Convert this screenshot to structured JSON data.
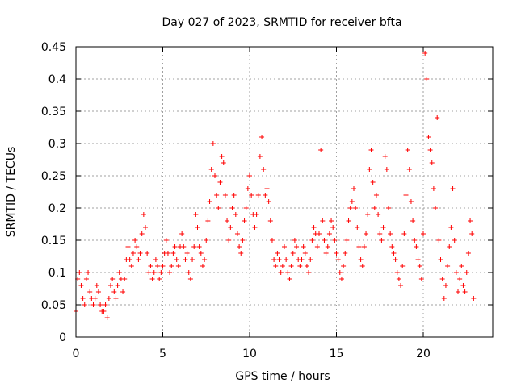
{
  "chart_data": {
    "type": "scatter",
    "title": "Day 027 of 2023, SRMTID for receiver bfta",
    "xlabel": "GPS time / hours",
    "ylabel": "SRMTID / TECUs",
    "xlim": [
      0,
      24
    ],
    "ylim": [
      0,
      0.45
    ],
    "x_ticks": [
      "0",
      "5",
      "10",
      "15",
      "20"
    ],
    "y_ticks": [
      "0",
      "0.05",
      "0.1",
      "0.15",
      "0.2",
      "0.25",
      "0.3",
      "0.35",
      "0.4",
      "0.45"
    ],
    "grid": true,
    "marker": "plus",
    "color": "#ff0000",
    "series": [
      {
        "values": [
          [
            0.0,
            0.04
          ],
          [
            0.1,
            0.09
          ],
          [
            0.2,
            0.1
          ],
          [
            0.3,
            0.08
          ],
          [
            0.4,
            0.06
          ],
          [
            0.5,
            0.05
          ],
          [
            0.6,
            0.09
          ],
          [
            0.7,
            0.1
          ],
          [
            0.8,
            0.07
          ],
          [
            0.9,
            0.06
          ],
          [
            1.0,
            0.05
          ],
          [
            1.1,
            0.06
          ],
          [
            1.2,
            0.08
          ],
          [
            1.3,
            0.07
          ],
          [
            1.4,
            0.05
          ],
          [
            1.5,
            0.04
          ],
          [
            1.6,
            0.04
          ],
          [
            1.7,
            0.05
          ],
          [
            1.8,
            0.03
          ],
          [
            1.9,
            0.06
          ],
          [
            2.0,
            0.08
          ],
          [
            2.1,
            0.09
          ],
          [
            2.2,
            0.07
          ],
          [
            2.3,
            0.06
          ],
          [
            2.4,
            0.08
          ],
          [
            2.5,
            0.1
          ],
          [
            2.6,
            0.09
          ],
          [
            2.7,
            0.07
          ],
          [
            2.8,
            0.09
          ],
          [
            2.9,
            0.12
          ],
          [
            3.0,
            0.14
          ],
          [
            3.1,
            0.12
          ],
          [
            3.2,
            0.11
          ],
          [
            3.3,
            0.13
          ],
          [
            3.4,
            0.15
          ],
          [
            3.5,
            0.14
          ],
          [
            3.6,
            0.12
          ],
          [
            3.7,
            0.13
          ],
          [
            3.8,
            0.16
          ],
          [
            3.9,
            0.19
          ],
          [
            4.0,
            0.17
          ],
          [
            4.1,
            0.13
          ],
          [
            4.2,
            0.1
          ],
          [
            4.3,
            0.11
          ],
          [
            4.4,
            0.09
          ],
          [
            4.5,
            0.1
          ],
          [
            4.6,
            0.12
          ],
          [
            4.7,
            0.11
          ],
          [
            4.8,
            0.09
          ],
          [
            4.9,
            0.1
          ],
          [
            5.0,
            0.11
          ],
          [
            5.1,
            0.13
          ],
          [
            5.2,
            0.15
          ],
          [
            5.3,
            0.13
          ],
          [
            5.4,
            0.1
          ],
          [
            5.5,
            0.11
          ],
          [
            5.6,
            0.13
          ],
          [
            5.7,
            0.14
          ],
          [
            5.8,
            0.12
          ],
          [
            5.9,
            0.11
          ],
          [
            6.0,
            0.14
          ],
          [
            6.1,
            0.16
          ],
          [
            6.2,
            0.14
          ],
          [
            6.3,
            0.12
          ],
          [
            6.4,
            0.13
          ],
          [
            6.5,
            0.1
          ],
          [
            6.6,
            0.09
          ],
          [
            6.7,
            0.12
          ],
          [
            6.8,
            0.14
          ],
          [
            6.9,
            0.19
          ],
          [
            7.0,
            0.17
          ],
          [
            7.1,
            0.14
          ],
          [
            7.2,
            0.13
          ],
          [
            7.3,
            0.11
          ],
          [
            7.4,
            0.12
          ],
          [
            7.5,
            0.15
          ],
          [
            7.6,
            0.18
          ],
          [
            7.7,
            0.21
          ],
          [
            7.8,
            0.26
          ],
          [
            7.9,
            0.3
          ],
          [
            8.0,
            0.25
          ],
          [
            8.1,
            0.22
          ],
          [
            8.2,
            0.2
          ],
          [
            8.3,
            0.24
          ],
          [
            8.4,
            0.28
          ],
          [
            8.5,
            0.27
          ],
          [
            8.6,
            0.22
          ],
          [
            8.7,
            0.18
          ],
          [
            8.8,
            0.15
          ],
          [
            8.9,
            0.17
          ],
          [
            9.0,
            0.2
          ],
          [
            9.1,
            0.22
          ],
          [
            9.2,
            0.19
          ],
          [
            9.3,
            0.16
          ],
          [
            9.4,
            0.14
          ],
          [
            9.5,
            0.13
          ],
          [
            9.6,
            0.15
          ],
          [
            9.7,
            0.18
          ],
          [
            9.8,
            0.2
          ],
          [
            9.9,
            0.23
          ],
          [
            10.0,
            0.25
          ],
          [
            10.1,
            0.22
          ],
          [
            10.2,
            0.19
          ],
          [
            10.3,
            0.17
          ],
          [
            10.4,
            0.19
          ],
          [
            10.5,
            0.22
          ],
          [
            10.6,
            0.28
          ],
          [
            10.7,
            0.31
          ],
          [
            10.8,
            0.26
          ],
          [
            10.9,
            0.22
          ],
          [
            11.0,
            0.23
          ],
          [
            11.1,
            0.21
          ],
          [
            11.2,
            0.18
          ],
          [
            11.3,
            0.15
          ],
          [
            11.4,
            0.12
          ],
          [
            11.5,
            0.11
          ],
          [
            11.6,
            0.13
          ],
          [
            11.7,
            0.12
          ],
          [
            11.8,
            0.1
          ],
          [
            11.9,
            0.11
          ],
          [
            12.0,
            0.14
          ],
          [
            12.1,
            0.12
          ],
          [
            12.2,
            0.1
          ],
          [
            12.3,
            0.09
          ],
          [
            12.4,
            0.11
          ],
          [
            12.5,
            0.13
          ],
          [
            12.6,
            0.15
          ],
          [
            12.7,
            0.14
          ],
          [
            12.8,
            0.12
          ],
          [
            12.9,
            0.11
          ],
          [
            13.0,
            0.12
          ],
          [
            13.1,
            0.14
          ],
          [
            13.2,
            0.13
          ],
          [
            13.3,
            0.11
          ],
          [
            13.4,
            0.1
          ],
          [
            13.5,
            0.12
          ],
          [
            13.6,
            0.15
          ],
          [
            13.7,
            0.17
          ],
          [
            13.8,
            0.16
          ],
          [
            13.9,
            0.14
          ],
          [
            14.0,
            0.16
          ],
          [
            14.1,
            0.29
          ],
          [
            14.2,
            0.18
          ],
          [
            14.3,
            0.15
          ],
          [
            14.4,
            0.13
          ],
          [
            14.5,
            0.14
          ],
          [
            14.6,
            0.16
          ],
          [
            14.7,
            0.18
          ],
          [
            14.8,
            0.17
          ],
          [
            14.9,
            0.15
          ],
          [
            15.0,
            0.13
          ],
          [
            15.1,
            0.12
          ],
          [
            15.2,
            0.1
          ],
          [
            15.3,
            0.09
          ],
          [
            15.4,
            0.11
          ],
          [
            15.5,
            0.13
          ],
          [
            15.6,
            0.15
          ],
          [
            15.7,
            0.18
          ],
          [
            15.8,
            0.2
          ],
          [
            15.9,
            0.21
          ],
          [
            16.0,
            0.23
          ],
          [
            16.1,
            0.2
          ],
          [
            16.2,
            0.17
          ],
          [
            16.3,
            0.14
          ],
          [
            16.4,
            0.12
          ],
          [
            16.5,
            0.11
          ],
          [
            16.6,
            0.14
          ],
          [
            16.7,
            0.16
          ],
          [
            16.8,
            0.19
          ],
          [
            16.9,
            0.26
          ],
          [
            17.0,
            0.29
          ],
          [
            17.1,
            0.24
          ],
          [
            17.2,
            0.2
          ],
          [
            17.3,
            0.22
          ],
          [
            17.4,
            0.19
          ],
          [
            17.5,
            0.16
          ],
          [
            17.6,
            0.15
          ],
          [
            17.7,
            0.17
          ],
          [
            17.8,
            0.28
          ],
          [
            17.9,
            0.26
          ],
          [
            18.0,
            0.2
          ],
          [
            18.1,
            0.16
          ],
          [
            18.2,
            0.14
          ],
          [
            18.3,
            0.13
          ],
          [
            18.4,
            0.12
          ],
          [
            18.5,
            0.1
          ],
          [
            18.6,
            0.09
          ],
          [
            18.7,
            0.08
          ],
          [
            18.8,
            0.11
          ],
          [
            18.9,
            0.16
          ],
          [
            19.0,
            0.22
          ],
          [
            19.1,
            0.29
          ],
          [
            19.2,
            0.26
          ],
          [
            19.3,
            0.21
          ],
          [
            19.4,
            0.18
          ],
          [
            19.5,
            0.15
          ],
          [
            19.6,
            0.14
          ],
          [
            19.7,
            0.12
          ],
          [
            19.8,
            0.11
          ],
          [
            19.9,
            0.09
          ],
          [
            20.0,
            0.16
          ],
          [
            20.1,
            0.44
          ],
          [
            20.2,
            0.4
          ],
          [
            20.3,
            0.31
          ],
          [
            20.4,
            0.29
          ],
          [
            20.5,
            0.27
          ],
          [
            20.6,
            0.23
          ],
          [
            20.7,
            0.2
          ],
          [
            20.8,
            0.34
          ],
          [
            20.9,
            0.15
          ],
          [
            21.0,
            0.12
          ],
          [
            21.1,
            0.09
          ],
          [
            21.2,
            0.06
          ],
          [
            21.3,
            0.08
          ],
          [
            21.4,
            0.11
          ],
          [
            21.5,
            0.14
          ],
          [
            21.6,
            0.17
          ],
          [
            21.7,
            0.23
          ],
          [
            21.8,
            0.15
          ],
          [
            21.9,
            0.1
          ],
          [
            22.0,
            0.07
          ],
          [
            22.1,
            0.09
          ],
          [
            22.2,
            0.11
          ],
          [
            22.3,
            0.08
          ],
          [
            22.4,
            0.07
          ],
          [
            22.5,
            0.1
          ],
          [
            22.6,
            0.13
          ],
          [
            22.7,
            0.18
          ],
          [
            22.8,
            0.16
          ],
          [
            22.9,
            0.06
          ]
        ]
      }
    ]
  }
}
